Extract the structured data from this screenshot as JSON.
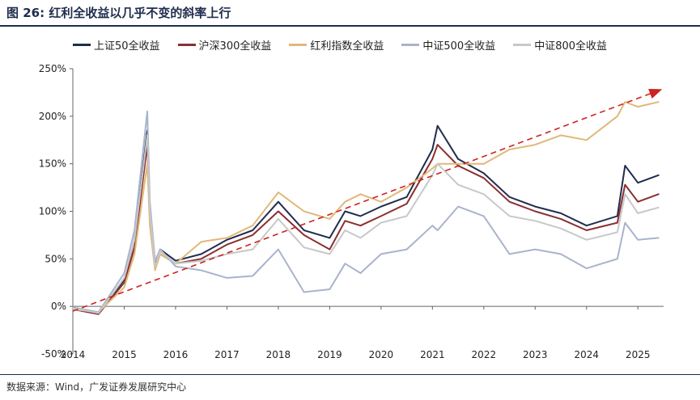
{
  "figure": {
    "title": "图 26: 红利全收益以几乎不变的斜率上行",
    "source": "数据来源：Wind，广发证券发展研究中心"
  },
  "chart_data": {
    "type": "line",
    "x": [
      "2014",
      "2014.5",
      "2015",
      "2015.2",
      "2015.45",
      "2015.5",
      "2015.6",
      "2015.7",
      "2016",
      "2016.5",
      "2017",
      "2017.5",
      "2018",
      "2018.5",
      "2019",
      "2019.3",
      "2019.6",
      "2020",
      "2020.5",
      "2021",
      "2021.1",
      "2021.5",
      "2022",
      "2022.5",
      "2023",
      "2023.5",
      "2024",
      "2024.6",
      "2024.75",
      "2025",
      "2025.4"
    ],
    "series": [
      {
        "name": "上证50全收益",
        "color": "#1f2d4e",
        "values": [
          -3,
          -8,
          28,
          70,
          185,
          100,
          45,
          60,
          48,
          55,
          70,
          80,
          110,
          80,
          72,
          100,
          95,
          105,
          115,
          165,
          190,
          155,
          140,
          115,
          105,
          98,
          85,
          95,
          148,
          130,
          138
        ]
      },
      {
        "name": "沪深300全收益",
        "color": "#8b2f2f",
        "values": [
          -3,
          -8,
          25,
          62,
          170,
          95,
          40,
          55,
          45,
          50,
          65,
          75,
          100,
          75,
          60,
          90,
          85,
          95,
          108,
          155,
          170,
          148,
          135,
          110,
          100,
          92,
          80,
          88,
          128,
          110,
          118
        ]
      },
      {
        "name": "红利指数全收益",
        "color": "#e0b87a",
        "values": [
          -3,
          -6,
          20,
          55,
          150,
          85,
          38,
          55,
          45,
          68,
          72,
          85,
          120,
          100,
          92,
          110,
          118,
          110,
          125,
          145,
          150,
          150,
          150,
          165,
          170,
          180,
          175,
          200,
          215,
          210,
          215
        ]
      },
      {
        "name": "中证500全收益",
        "color": "#a8b4cc",
        "values": [
          -1,
          -6,
          35,
          80,
          205,
          110,
          48,
          60,
          42,
          38,
          30,
          32,
          60,
          15,
          18,
          45,
          35,
          55,
          60,
          85,
          80,
          105,
          95,
          55,
          60,
          55,
          40,
          50,
          88,
          70,
          72
        ]
      },
      {
        "name": "中证800全收益",
        "color": "#c8c8c8",
        "values": [
          -2,
          -7,
          30,
          70,
          180,
          100,
          42,
          58,
          45,
          48,
          55,
          60,
          92,
          62,
          55,
          80,
          72,
          88,
          95,
          138,
          150,
          128,
          118,
          95,
          90,
          82,
          70,
          78,
          118,
          98,
          104
        ]
      }
    ],
    "x_ticks": [
      "2014",
      "2015",
      "2016",
      "2017",
      "2018",
      "2019",
      "2020",
      "2021",
      "2022",
      "2023",
      "2024",
      "2025"
    ],
    "y_ticks": [
      "250%",
      "200%",
      "150%",
      "100%",
      "50%",
      "0%",
      "-50%"
    ],
    "y_tick_values": [
      250,
      200,
      150,
      100,
      50,
      0,
      -50
    ],
    "ylim": [
      -50,
      250
    ],
    "xlim": [
      2014,
      2025.5
    ],
    "trend_arrow": {
      "from": [
        2014,
        -5
      ],
      "to": [
        2025.45,
        228
      ],
      "color": "#cc2222",
      "style": "dashed"
    },
    "grid": false,
    "legend_position": "top"
  }
}
